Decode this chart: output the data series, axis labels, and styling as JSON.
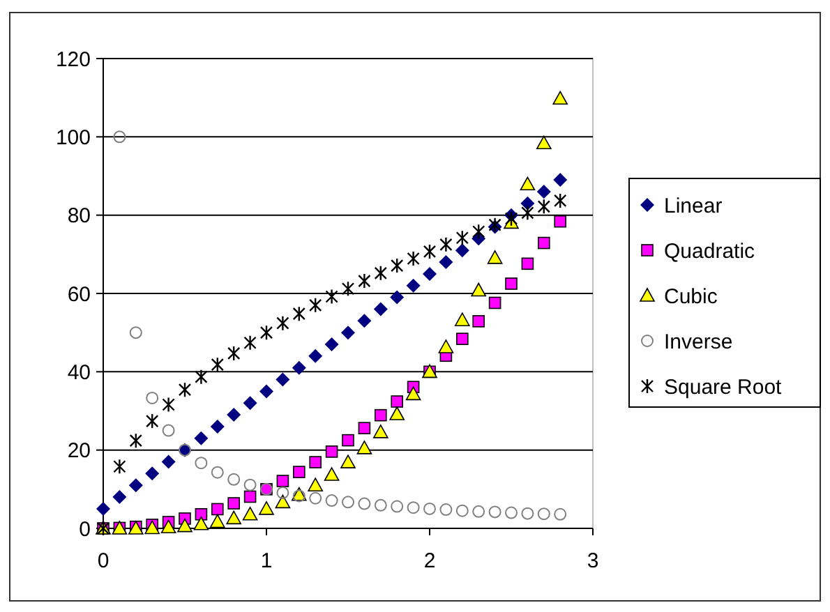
{
  "chart_data": {
    "type": "scatter",
    "x": [
      0,
      0.1,
      0.2,
      0.3,
      0.4,
      0.5,
      0.6,
      0.7,
      0.8,
      0.9,
      1,
      1.1,
      1.2,
      1.3,
      1.4,
      1.5,
      1.6,
      1.7,
      1.8,
      1.9,
      2,
      2.1,
      2.2,
      2.3,
      2.4,
      2.5,
      2.6,
      2.7,
      2.8
    ],
    "series": [
      {
        "name": "Linear",
        "color": "#000080",
        "marker": "diamond",
        "values": [
          5,
          8,
          11,
          14,
          17,
          20,
          23,
          26,
          29,
          32,
          35,
          38,
          41,
          44,
          47,
          50,
          53,
          56,
          59,
          62,
          65,
          68,
          71,
          74,
          77,
          80,
          83,
          86,
          89
        ]
      },
      {
        "name": "Quadratic",
        "color": "#ff00ff",
        "marker": "square",
        "values": [
          0,
          0.1,
          0.4,
          0.9,
          1.6,
          2.5,
          3.6,
          4.9,
          6.4,
          8.1,
          10,
          12.1,
          14.4,
          16.9,
          19.6,
          22.5,
          25.6,
          28.9,
          32.4,
          36.1,
          40,
          44.1,
          48.4,
          52.9,
          57.6,
          62.5,
          67.6,
          72.9,
          78.4
        ]
      },
      {
        "name": "Cubic",
        "color": "#ffff00",
        "marker": "triangle",
        "values": [
          0,
          0,
          0,
          0.1,
          0.3,
          0.6,
          1.1,
          1.7,
          2.6,
          3.6,
          5,
          6.7,
          8.6,
          11,
          13.7,
          16.9,
          20.5,
          24.6,
          29.2,
          34.3,
          40,
          46.3,
          53.2,
          60.8,
          69.1,
          78.1,
          87.9,
          98.4,
          109.8
        ]
      },
      {
        "name": "Inverse",
        "color": "#808080",
        "marker": "circle",
        "values": [
          null,
          100,
          50,
          33.3,
          25,
          20,
          16.7,
          14.3,
          12.5,
          11.1,
          10,
          9.1,
          8.3,
          7.7,
          7.1,
          6.7,
          6.3,
          5.9,
          5.6,
          5.3,
          5,
          4.8,
          4.5,
          4.3,
          4.2,
          4,
          3.8,
          3.7,
          3.6
        ]
      },
      {
        "name": "Square Root",
        "color": "#000000",
        "marker": "cross",
        "values": [
          0,
          15.8,
          22.4,
          27.4,
          31.6,
          35.4,
          38.7,
          41.8,
          44.7,
          47.4,
          50,
          52.4,
          54.8,
          57,
          59.2,
          61.2,
          63.2,
          65.2,
          67.1,
          68.9,
          70.7,
          72.5,
          74.2,
          75.8,
          77.5,
          79.1,
          80.6,
          82.2,
          83.7
        ]
      }
    ],
    "xlim": [
      0,
      3
    ],
    "xticks": [
      0,
      1,
      2,
      3
    ],
    "ylim": [
      0,
      120
    ],
    "yticks": [
      0,
      20,
      40,
      60,
      80,
      100,
      120
    ],
    "grid": "y",
    "legend": "right"
  }
}
